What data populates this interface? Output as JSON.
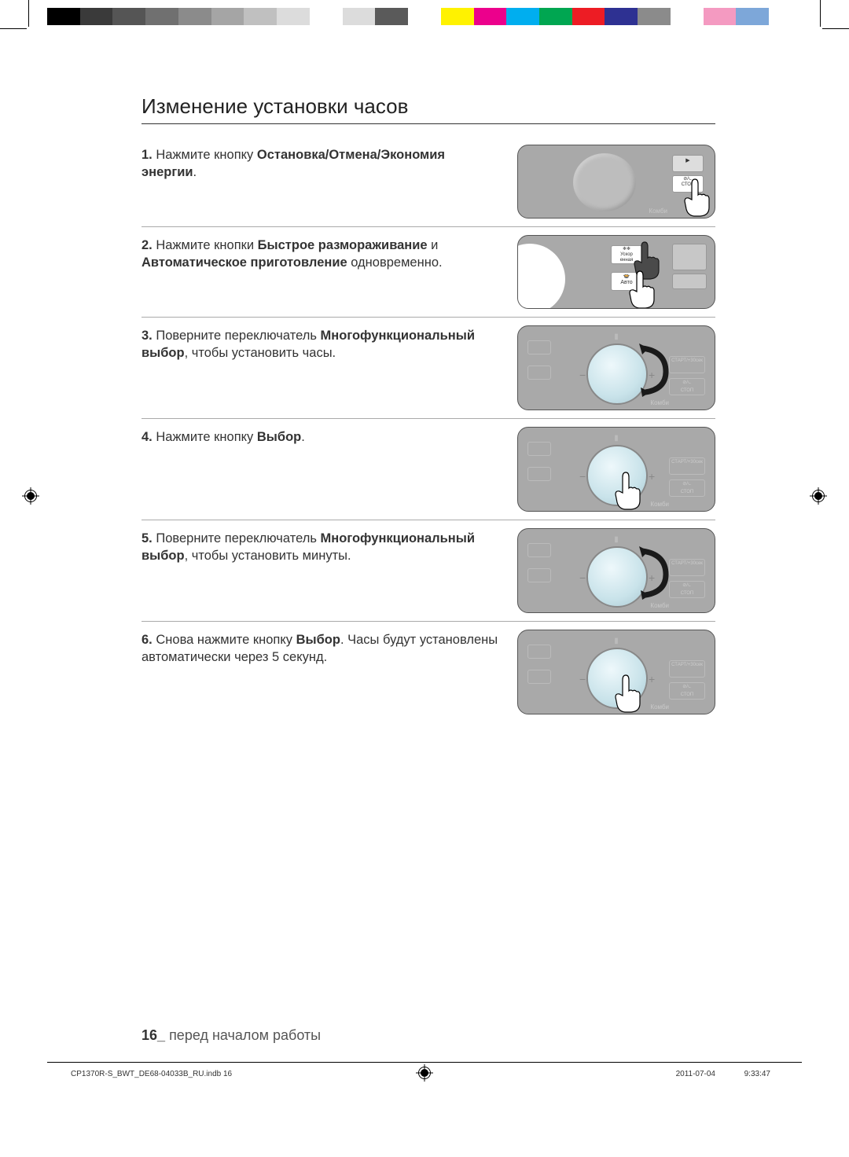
{
  "colorbar": [
    "#000000",
    "#3a3a3a",
    "#555555",
    "#707070",
    "#8b8b8b",
    "#a5a5a5",
    "#c0c0c0",
    "#dcdcdc",
    "#ffffff",
    "#dcdcdc",
    "#5a5a5a",
    "#ffffff",
    "#fff200",
    "#ec008c",
    "#00aeef",
    "#00a651",
    "#ed1c24",
    "#2e3192",
    "#8b8b8b",
    "#ffffff",
    "#f49ac1",
    "#7da7d9",
    "#ffffff"
  ],
  "title": "Изменение установки часов",
  "steps": [
    {
      "num": "1.",
      "parts": [
        {
          "t": "Нажмите кнопку ",
          "b": false
        },
        {
          "t": "Остановка/Отмена/Экономия энергии",
          "b": true
        },
        {
          "t": ".",
          "b": false
        }
      ],
      "illus": "stop"
    },
    {
      "num": "2.",
      "parts": [
        {
          "t": "Нажмите кнопки ",
          "b": false
        },
        {
          "t": "Быстрое размораживание",
          "b": true
        },
        {
          "t": " и ",
          "b": false
        },
        {
          "t": "Автоматическое приготовление",
          "b": true
        },
        {
          "t": " одновременно.",
          "b": false
        }
      ],
      "illus": "two"
    },
    {
      "num": "3.",
      "parts": [
        {
          "t": "Поверните переключатель ",
          "b": false
        },
        {
          "t": "Многофункциональный выбор",
          "b": true
        },
        {
          "t": ", чтобы установить часы.",
          "b": false
        }
      ],
      "illus": "turn"
    },
    {
      "num": "4.",
      "parts": [
        {
          "t": "Нажмите кнопку ",
          "b": false
        },
        {
          "t": "Выбор",
          "b": true
        },
        {
          "t": ".",
          "b": false
        }
      ],
      "illus": "press"
    },
    {
      "num": "5.",
      "parts": [
        {
          "t": "Поверните переключатель ",
          "b": false
        },
        {
          "t": "Многофункциональный выбор",
          "b": true
        },
        {
          "t": ", чтобы установить минуты.",
          "b": false
        }
      ],
      "illus": "turn"
    },
    {
      "num": "6.",
      "parts": [
        {
          "t": "Снова нажмите кнопку ",
          "b": false
        },
        {
          "t": "Выбор",
          "b": true
        },
        {
          "t": ". Часы будут установлены автоматически через 5 секунд.",
          "b": false
        }
      ],
      "illus": "press"
    }
  ],
  "footer": {
    "page": "16_",
    "section": "перед началом работы"
  },
  "meta": {
    "file": "CP1370R-S_BWT_DE68-04033B_RU.indb   16",
    "date": "2011-07-04",
    "time": "9:33:47"
  },
  "labels": {
    "stop": "СТОП",
    "defrost": "Ускор\nенная",
    "auto": "Авто",
    "combi": "Комби"
  },
  "colors": {
    "panel_bg": "#a9a9a9",
    "panel_border": "#555555",
    "dial_light": "#eef8fb",
    "dial_mid": "#c9e3ea",
    "dial_dark": "#a8c6d0",
    "text": "#333333",
    "faint": "#999999"
  }
}
